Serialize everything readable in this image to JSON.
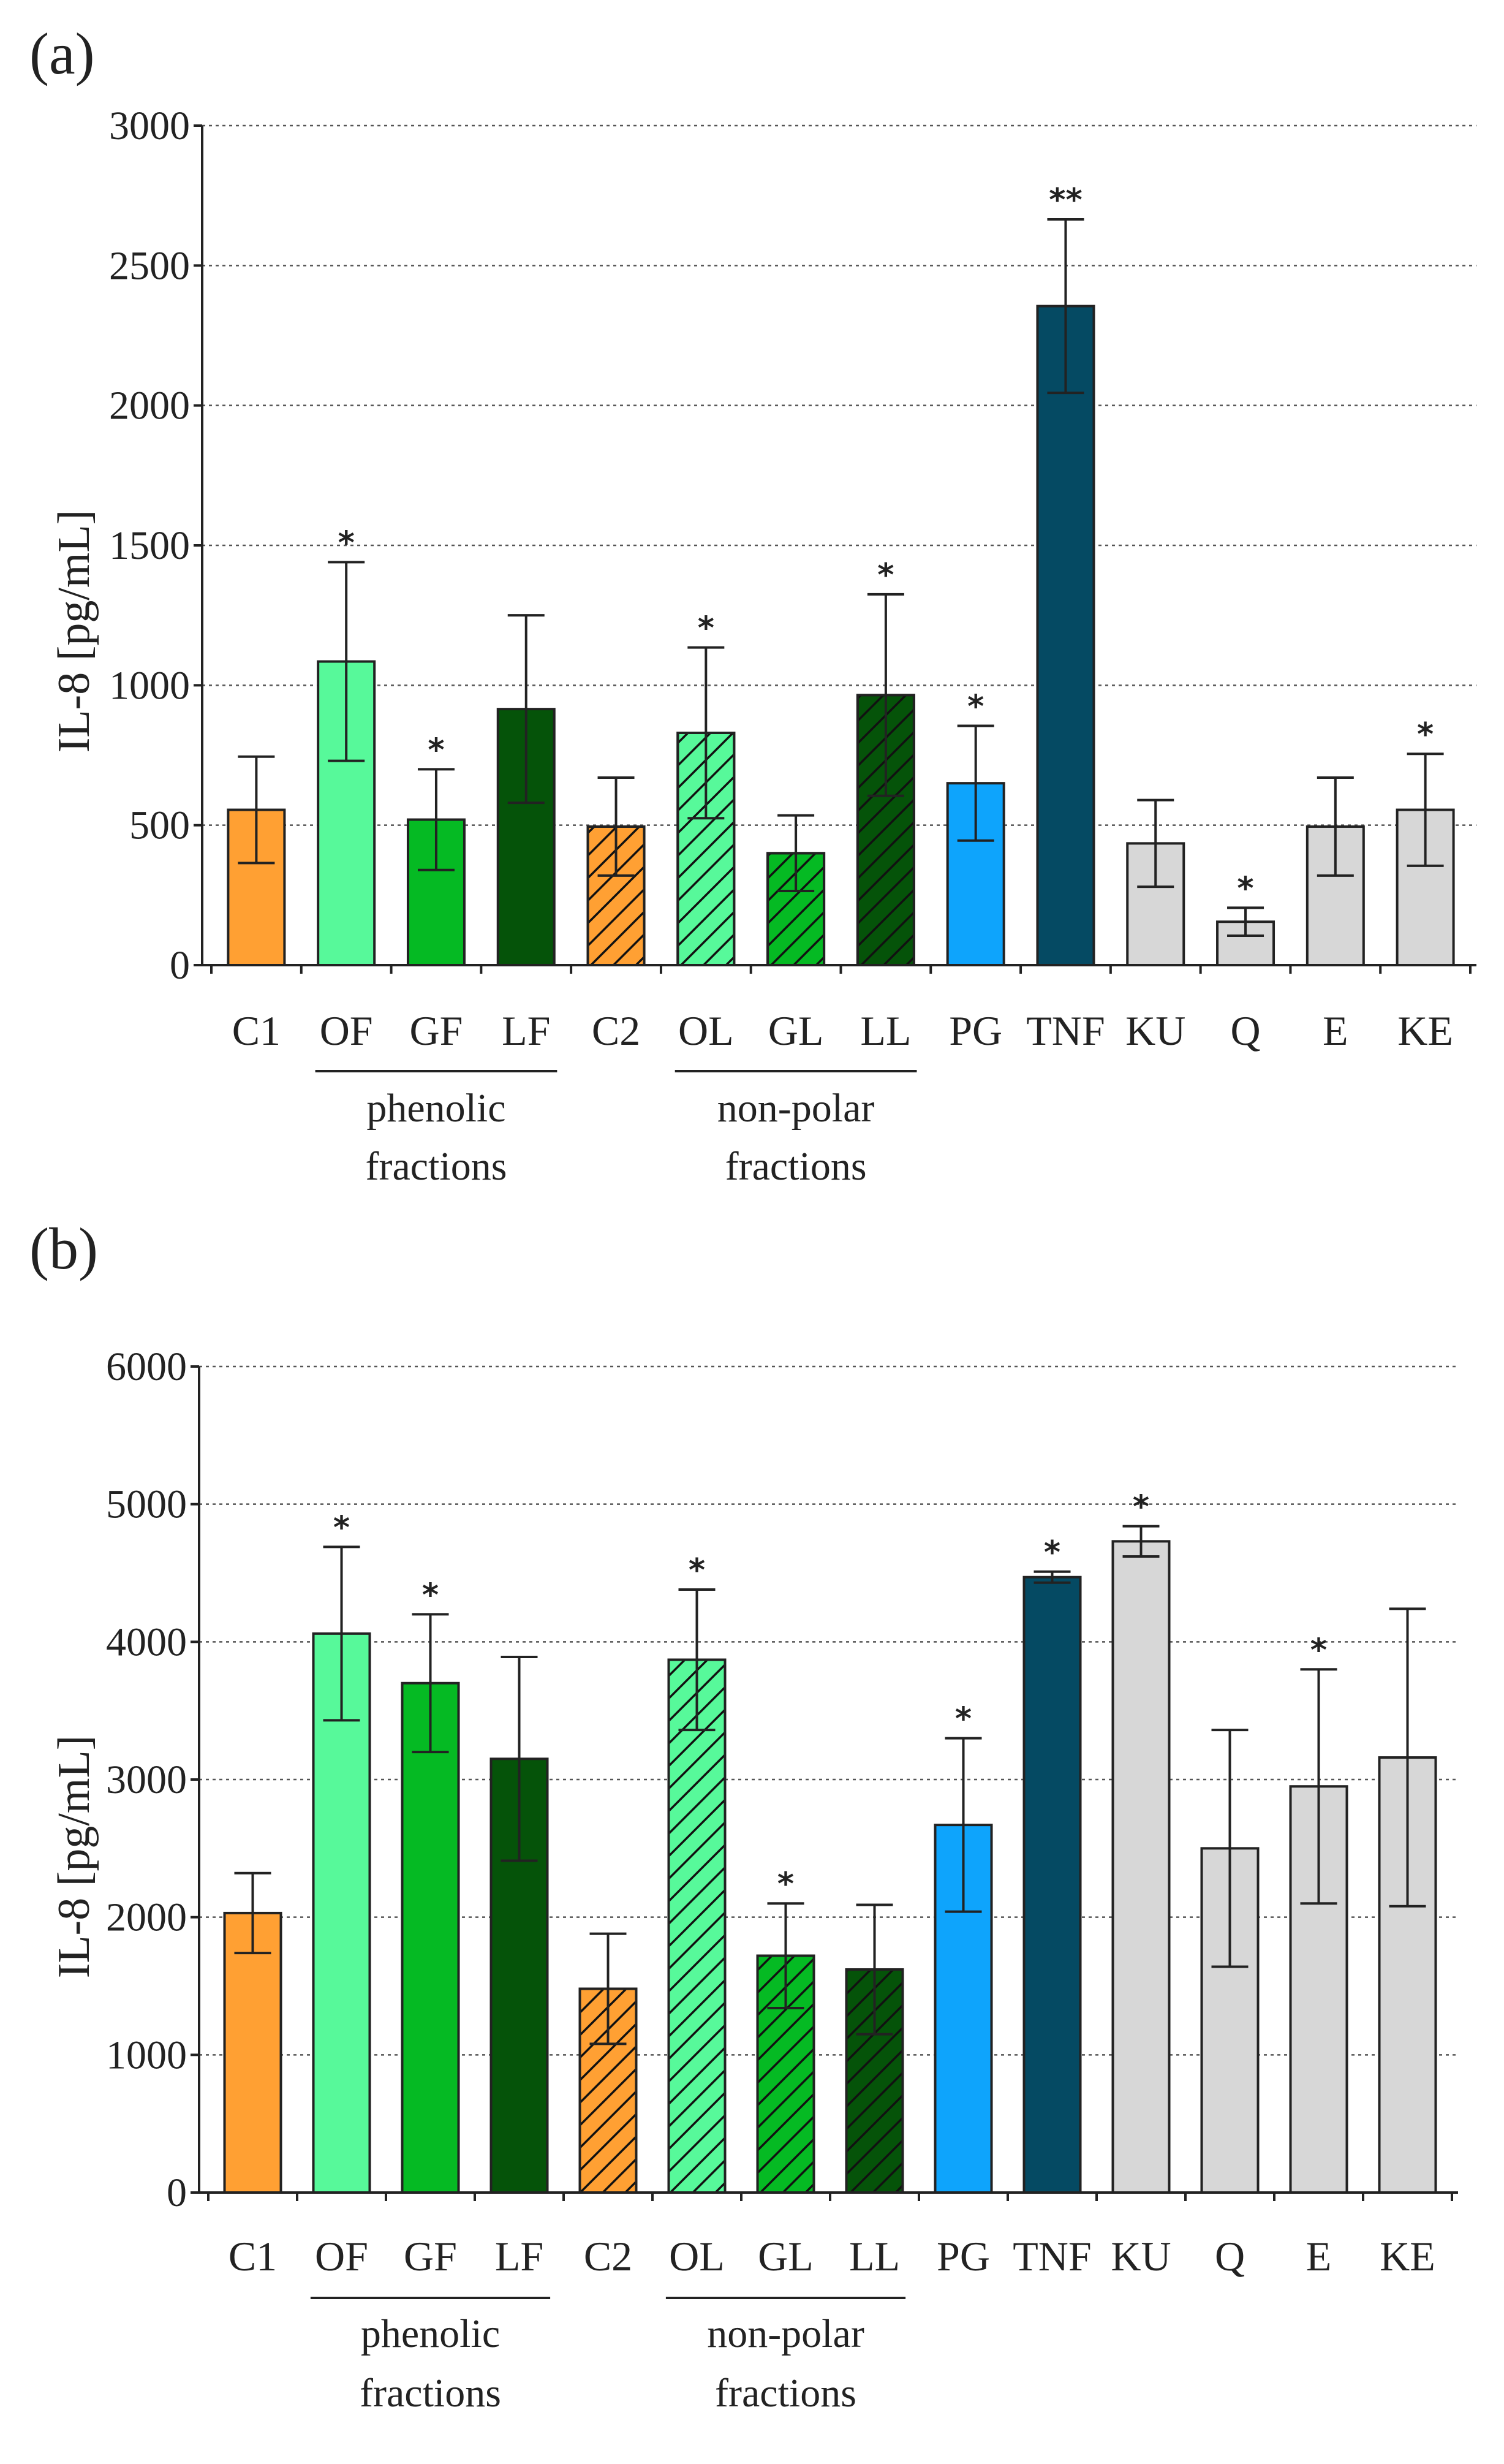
{
  "colors": {
    "orange": "#FFA033",
    "lightgreen": "#57F99A",
    "green": "#05BA23",
    "darkgreen": "#055309",
    "blue": "#0EA4FC",
    "navy": "#054A63",
    "gray": "#D7D7D7"
  },
  "chart_data": [
    {
      "type": "bar",
      "panel_label": "(a)",
      "ylabel": "IL-8 [pg/mL]",
      "ylim": [
        0,
        3000
      ],
      "yticks": [
        0,
        500,
        1000,
        1500,
        2000,
        2500,
        3000
      ],
      "grid": true,
      "categories": [
        "C1",
        "OF",
        "GF",
        "LF",
        "C2",
        "OL",
        "GL",
        "LL",
        "PG",
        "TNF",
        "KU",
        "Q",
        "E",
        "KE"
      ],
      "values": [
        555,
        1085,
        520,
        915,
        495,
        830,
        400,
        965,
        650,
        2355,
        435,
        155,
        495,
        555
      ],
      "errors": [
        190,
        355,
        180,
        335,
        175,
        305,
        135,
        360,
        205,
        310,
        155,
        50,
        175,
        200
      ],
      "significance": [
        "",
        "*",
        "*",
        "",
        "",
        "*",
        "",
        "*",
        "*",
        "**",
        "",
        "*",
        "",
        "*"
      ],
      "colors": [
        "orange",
        "lightgreen",
        "green",
        "darkgreen",
        "orange",
        "lightgreen",
        "green",
        "darkgreen",
        "blue",
        "navy",
        "gray",
        "gray",
        "gray",
        "gray"
      ],
      "hatched": [
        false,
        false,
        false,
        false,
        true,
        true,
        true,
        true,
        false,
        false,
        false,
        false,
        false,
        false
      ],
      "groups": [
        {
          "from": 1,
          "to": 3,
          "line1": "phenolic",
          "line2": "fractions"
        },
        {
          "from": 5,
          "to": 7,
          "line1": "non-polar",
          "line2": "fractions"
        }
      ]
    },
    {
      "type": "bar",
      "panel_label": "(b)",
      "ylabel": "IL-8 [pg/mL]",
      "ylim": [
        0,
        6000
      ],
      "yticks": [
        0,
        1000,
        2000,
        3000,
        4000,
        5000,
        6000
      ],
      "grid": true,
      "categories": [
        "C1",
        "OF",
        "GF",
        "LF",
        "C2",
        "OL",
        "GL",
        "LL",
        "PG",
        "TNF",
        "KU",
        "Q",
        "E",
        "KE"
      ],
      "values": [
        2030,
        4060,
        3700,
        3150,
        1480,
        3870,
        1720,
        1620,
        2670,
        4470,
        4730,
        2500,
        2950,
        3160
      ],
      "errors": [
        290,
        630,
        500,
        740,
        400,
        510,
        380,
        470,
        630,
        40,
        110,
        860,
        850,
        1080
      ],
      "significance": [
        "",
        "*",
        "*",
        "",
        "",
        "*",
        "*",
        "",
        "*",
        "*",
        "*",
        "",
        "*",
        ""
      ],
      "colors": [
        "orange",
        "lightgreen",
        "green",
        "darkgreen",
        "orange",
        "lightgreen",
        "green",
        "darkgreen",
        "blue",
        "navy",
        "gray",
        "gray",
        "gray",
        "gray"
      ],
      "hatched": [
        false,
        false,
        false,
        false,
        true,
        true,
        true,
        true,
        false,
        false,
        false,
        false,
        false,
        false
      ],
      "groups": [
        {
          "from": 1,
          "to": 3,
          "line1": "phenolic",
          "line2": "fractions"
        },
        {
          "from": 5,
          "to": 7,
          "line1": "non-polar",
          "line2": "fractions"
        }
      ]
    }
  ]
}
